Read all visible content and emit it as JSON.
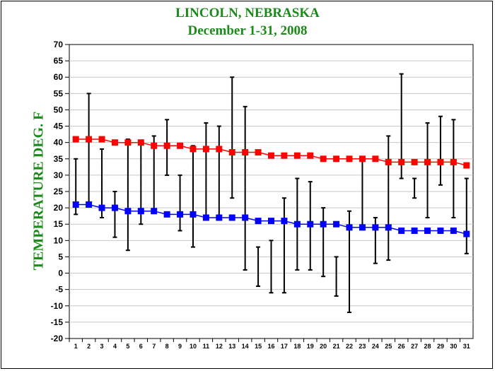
{
  "chart_data": {
    "type": "line",
    "title": "LINCOLN, NEBRASKA",
    "subtitle": "December 1-31, 2008",
    "xlabel": "",
    "ylabel": "TEMPERATURE DEG. F",
    "ylim": [
      -20,
      70
    ],
    "ytick_step": 5,
    "grid": "horizontal",
    "categories": [
      1,
      2,
      3,
      4,
      5,
      6,
      7,
      8,
      9,
      10,
      11,
      12,
      13,
      14,
      15,
      16,
      17,
      18,
      19,
      20,
      21,
      22,
      23,
      24,
      25,
      26,
      27,
      28,
      29,
      30,
      31
    ],
    "series": [
      {
        "color": "#ff0000",
        "values": [
          41,
          41,
          41,
          40,
          40,
          40,
          39,
          39,
          39,
          38,
          38,
          38,
          37,
          37,
          37,
          36,
          36,
          36,
          36,
          35,
          35,
          35,
          35,
          35,
          34,
          34,
          34,
          34,
          34,
          34,
          33
        ]
      },
      {
        "color": "#0000ff",
        "values": [
          21,
          21,
          20,
          20,
          19,
          19,
          19,
          18,
          18,
          18,
          17,
          17,
          17,
          17,
          16,
          16,
          16,
          15,
          15,
          15,
          15,
          14,
          14,
          14,
          14,
          13,
          13,
          13,
          13,
          13,
          12
        ]
      }
    ],
    "observed_range": {
      "color": "#000000",
      "low": [
        18,
        21,
        17,
        11,
        7,
        15,
        19,
        30,
        13,
        8,
        17,
        17,
        23,
        1,
        -4,
        -6,
        -6,
        1,
        1,
        -1,
        -7,
        -12,
        14,
        3,
        4,
        29,
        23,
        17,
        27,
        17,
        6
      ],
      "high": [
        35,
        55,
        38,
        25,
        41,
        40,
        42,
        47,
        30,
        39,
        46,
        45,
        60,
        51,
        8,
        10,
        23,
        29,
        28,
        20,
        5,
        19,
        35,
        17,
        42,
        61,
        29,
        46,
        48,
        47,
        29
      ]
    }
  }
}
